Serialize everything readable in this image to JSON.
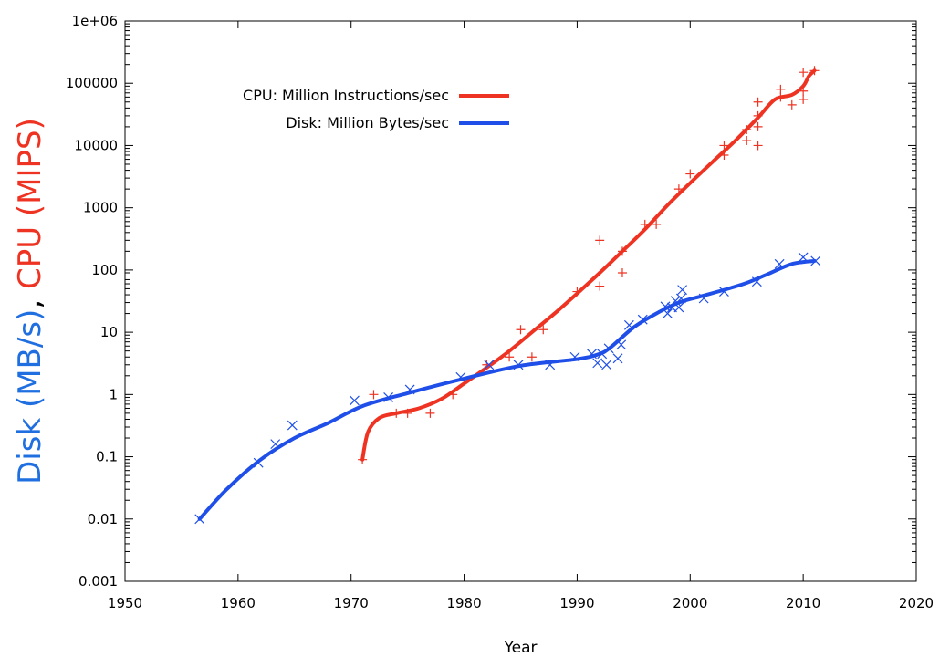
{
  "chart_data": {
    "type": "scatter",
    "title": "",
    "xlabel": "Year",
    "ylabel_parts": [
      {
        "text": "Disk (MB/s)",
        "color": "#1f6fe0"
      },
      {
        "text": ", ",
        "color": "#000000"
      },
      {
        "text": "CPU (MIPS)",
        "color": "#ee3322"
      }
    ],
    "xlim": [
      1950,
      2020
    ],
    "ylim": [
      0.001,
      1000000
    ],
    "yscale": "log",
    "grid": false,
    "legend_position": "top-left",
    "x_ticks": [
      1950,
      1960,
      1970,
      1980,
      1990,
      2000,
      2010,
      2020
    ],
    "x_tick_labels": [
      "1950",
      "1960",
      "1970",
      "1980",
      "1990",
      "2000",
      "2010",
      "2020"
    ],
    "y_ticks": [
      0.001,
      0.01,
      0.1,
      1,
      10,
      100,
      1000,
      10000,
      100000,
      1000000
    ],
    "y_tick_labels": [
      "0.001",
      "0.01",
      "0.1",
      "1",
      "10",
      "100",
      "1000",
      "10000",
      "100000",
      "1e+06"
    ],
    "series": [
      {
        "name": "CPU: Million Instructions/sec",
        "color": "#ee3322",
        "marker": "plus",
        "points": [
          [
            1971,
            0.09
          ],
          [
            1972,
            1.0
          ],
          [
            1974,
            0.5
          ],
          [
            1975,
            0.5
          ],
          [
            1977,
            0.5
          ],
          [
            1979,
            1.0
          ],
          [
            1982,
            3
          ],
          [
            1984,
            4
          ],
          [
            1985,
            11
          ],
          [
            1986,
            4
          ],
          [
            1987,
            11
          ],
          [
            1990,
            45
          ],
          [
            1992,
            300
          ],
          [
            1992,
            55
          ],
          [
            1994,
            90
          ],
          [
            1994,
            200
          ],
          [
            1996,
            540
          ],
          [
            1997,
            540
          ],
          [
            1999,
            2000
          ],
          [
            2000,
            3500
          ],
          [
            2003,
            7000
          ],
          [
            2003,
            10000
          ],
          [
            2005,
            12000
          ],
          [
            2005,
            18000
          ],
          [
            2006,
            10000
          ],
          [
            2006,
            20000
          ],
          [
            2006,
            30000
          ],
          [
            2006,
            50000
          ],
          [
            2008,
            60000
          ],
          [
            2008,
            80000
          ],
          [
            2009,
            45000
          ],
          [
            2010,
            55000
          ],
          [
            2010,
            75000
          ],
          [
            2010,
            150000
          ],
          [
            2011,
            160000
          ]
        ],
        "trend": [
          [
            1971,
            0.09
          ],
          [
            1971.5,
            0.25
          ],
          [
            1972.5,
            0.42
          ],
          [
            1974,
            0.5
          ],
          [
            1976,
            0.6
          ],
          [
            1978,
            0.85
          ],
          [
            1980,
            1.5
          ],
          [
            1982,
            2.7
          ],
          [
            1984,
            5
          ],
          [
            1986,
            10
          ],
          [
            1988,
            20
          ],
          [
            1990,
            42
          ],
          [
            1992,
            90
          ],
          [
            1994,
            200
          ],
          [
            1996,
            450
          ],
          [
            1998,
            1100
          ],
          [
            2000,
            2500
          ],
          [
            2002,
            5500
          ],
          [
            2004,
            12000
          ],
          [
            2006,
            28000
          ],
          [
            2007.5,
            55000
          ],
          [
            2009,
            65000
          ],
          [
            2010,
            90000
          ],
          [
            2010.5,
            130000
          ],
          [
            2011,
            160000
          ]
        ]
      },
      {
        "name": "Disk: Million Bytes/sec",
        "color": "#1f4fe8",
        "marker": "cross",
        "points": [
          [
            1956.6,
            0.01
          ],
          [
            1961.8,
            0.08
          ],
          [
            1963.3,
            0.16
          ],
          [
            1964.8,
            0.32
          ],
          [
            1970.3,
            0.8
          ],
          [
            1973.3,
            0.9
          ],
          [
            1975.2,
            1.2
          ],
          [
            1979.7,
            1.9
          ],
          [
            1982.2,
            3
          ],
          [
            1984.8,
            3
          ],
          [
            1987.6,
            3
          ],
          [
            1989.8,
            4
          ],
          [
            1991.3,
            4.5
          ],
          [
            1991.8,
            3.2
          ],
          [
            1992.2,
            4.5
          ],
          [
            1992.6,
            3
          ],
          [
            1992.8,
            5.5
          ],
          [
            1993.6,
            3.8
          ],
          [
            1993.9,
            6.3
          ],
          [
            1994.6,
            13
          ],
          [
            1995.8,
            16
          ],
          [
            1997.8,
            26
          ],
          [
            1998.0,
            20
          ],
          [
            1998.4,
            25
          ],
          [
            1998.7,
            32
          ],
          [
            1999.0,
            25
          ],
          [
            1999.2,
            35
          ],
          [
            1999.3,
            48
          ],
          [
            2001.2,
            35
          ],
          [
            2003.0,
            45
          ],
          [
            2005.9,
            65
          ],
          [
            2007.9,
            125
          ],
          [
            2010.0,
            160
          ],
          [
            2011.1,
            140
          ]
        ],
        "trend": [
          [
            1956.6,
            0.01
          ],
          [
            1959,
            0.03
          ],
          [
            1962,
            0.09
          ],
          [
            1965,
            0.2
          ],
          [
            1968,
            0.35
          ],
          [
            1971,
            0.65
          ],
          [
            1975,
            1.05
          ],
          [
            1980,
            1.8
          ],
          [
            1985,
            2.9
          ],
          [
            1990,
            3.7
          ],
          [
            1992,
            4.5
          ],
          [
            1993,
            5.8
          ],
          [
            1995,
            12
          ],
          [
            1997,
            20
          ],
          [
            1999,
            30
          ],
          [
            2001,
            38
          ],
          [
            2003,
            48
          ],
          [
            2005,
            62
          ],
          [
            2007,
            88
          ],
          [
            2009,
            125
          ],
          [
            2011,
            140
          ]
        ]
      }
    ]
  }
}
